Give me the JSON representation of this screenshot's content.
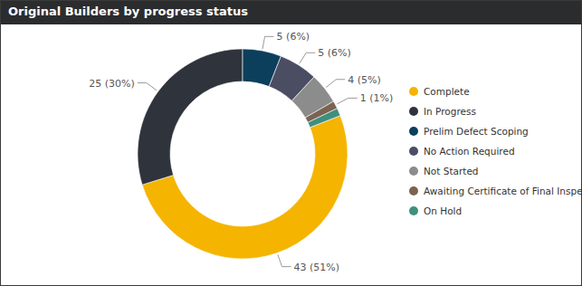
{
  "chart_data": {
    "type": "donut",
    "title": "Original Builders by progress status",
    "categories": [
      "Complete",
      "In Progress",
      "Prelim Defect Scoping",
      "No Action Required",
      "Not Started",
      "Awaiting Certificate of Final Inspection",
      "On Hold"
    ],
    "values": [
      43,
      25,
      5,
      5,
      4,
      1,
      1
    ],
    "value_labels": [
      "43 (51%)",
      "25 (30%)",
      "5 (6%)",
      "5 (6%)",
      "4 (5%)",
      "1 (1%)",
      null
    ],
    "colors": [
      "#f5b400",
      "#2f333b",
      "#0b3f5c",
      "#4b4e63",
      "#8c8c8c",
      "#7a6352",
      "#3f8f7c"
    ],
    "legend": "right",
    "data_labels": true
  }
}
